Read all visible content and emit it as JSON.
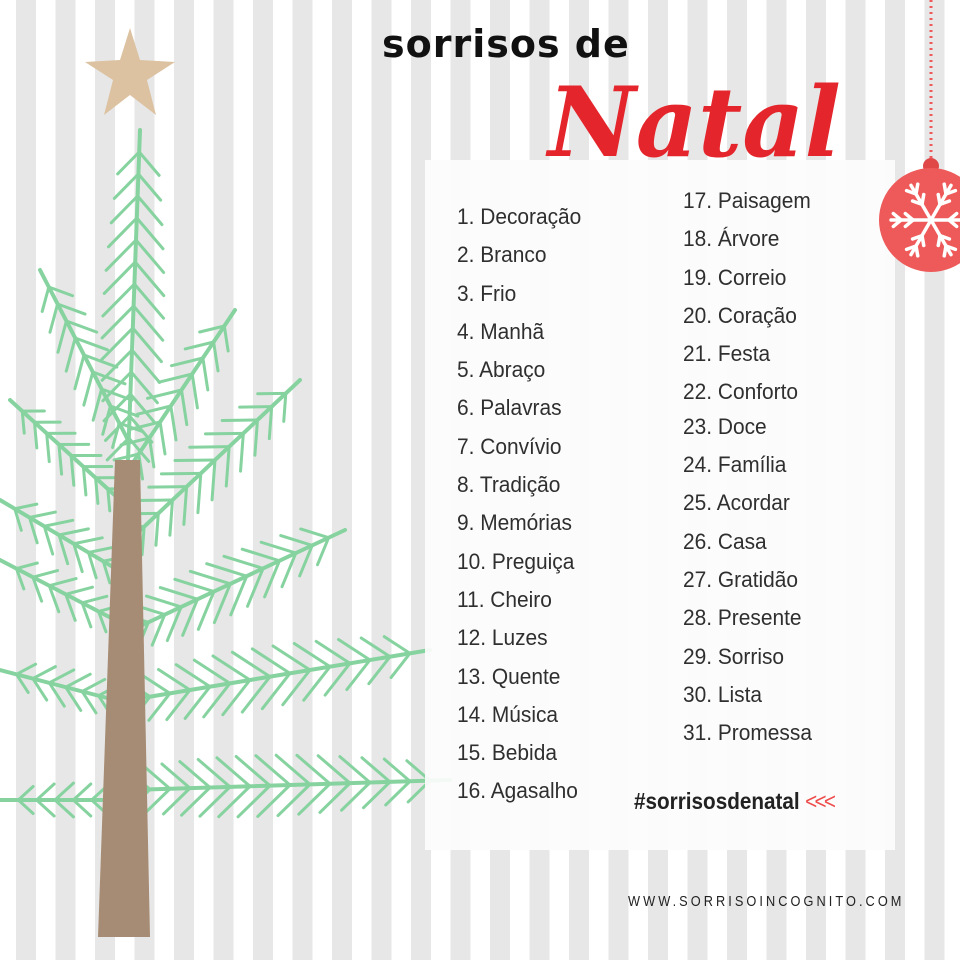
{
  "title": {
    "line1": "sorrisos de",
    "line2": "Natal"
  },
  "list": {
    "column1": [
      "1. Decoração",
      "2. Branco",
      "3. Frio",
      "4. Manhã",
      "5. Abraço",
      "6. Palavras",
      "7. Convívio",
      "8. Tradição",
      "9. Memórias",
      "10. Preguiça",
      "11. Cheiro",
      "12. Luzes",
      "13. Quente",
      "14. Música",
      "15. Bebida",
      "16. Agasalho"
    ],
    "column2": [
      "17. Paisagem",
      "18. Árvore",
      "19. Correio",
      "20. Coração",
      "21. Festa",
      "22. Conforto",
      "23. Doce",
      "24. Família",
      "25. Acordar",
      "26. Casa",
      "27. Gratidão",
      "28. Presente",
      "29. Sorriso",
      "30. Lista",
      "31. Promessa"
    ]
  },
  "hashtag": "#sorrisosdenatal",
  "hashtag_arrows": "<<<",
  "website": "WWW.SORRISOINCOGNITO.COM",
  "colors": {
    "accent_red": "#e4262c",
    "ornament": "#ee5a5a",
    "needles": "#86d3a0",
    "trunk": "#a68c74",
    "star": "#dcc2a0",
    "stripe": "#e7e7e7"
  },
  "decorations": [
    "star-icon",
    "christmas-tree",
    "ornament-snowflake-icon"
  ]
}
